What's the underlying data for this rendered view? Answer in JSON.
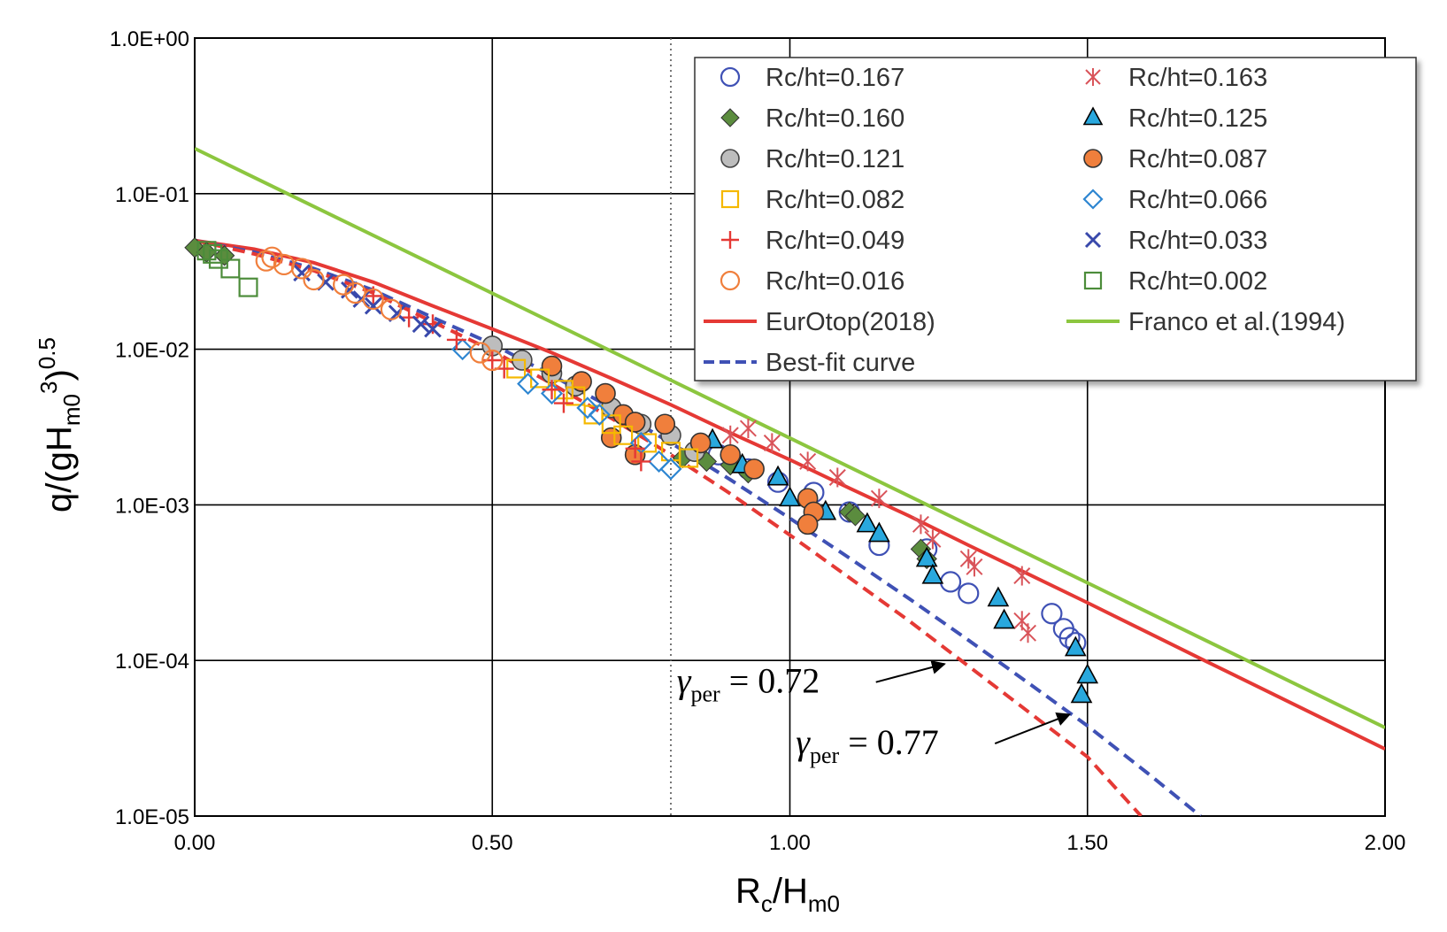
{
  "chart_data": {
    "type": "scatter",
    "title": "",
    "xlabel": "Rc/Hm0",
    "ylabel": "q/(gHm0^3)^0.5",
    "xlabel_parts": {
      "main": "R",
      "sub1": "c",
      "mid": "/H",
      "sub2": "m0"
    },
    "ylabel_parts": {
      "pre": "q/(gH",
      "sub": "m0",
      "sup1": "3",
      "post": ")",
      "sup2": "0.5"
    },
    "xlim": [
      0,
      2
    ],
    "ylim": [
      1e-05,
      1
    ],
    "yscale": "log",
    "grid": true,
    "x_ticks": [
      {
        "v": 0,
        "label": "0.00"
      },
      {
        "v": 0.5,
        "label": "0.50"
      },
      {
        "v": 1.0,
        "label": "1.00"
      },
      {
        "v": 1.5,
        "label": "1.50"
      },
      {
        "v": 2.0,
        "label": "2.00"
      }
    ],
    "y_ticks": [
      {
        "v": 1,
        "label": "1.0E+00"
      },
      {
        "v": 0.1,
        "label": "1.0E-01"
      },
      {
        "v": 0.01,
        "label": "1.0E-02"
      },
      {
        "v": 0.001,
        "label": "1.0E-03"
      },
      {
        "v": 0.0001,
        "label": "1.0E-04"
      },
      {
        "v": 1e-05,
        "label": "1.0E-05"
      }
    ],
    "vline_dotted": 0.8,
    "legend_position": "top-right",
    "series": [
      {
        "name": "Rc/ht=0.167",
        "marker": "circle-open",
        "color": "#3F51B5",
        "points": [
          [
            0.88,
            0.0021
          ],
          [
            0.93,
            0.0017
          ],
          [
            0.98,
            0.0014
          ],
          [
            1.04,
            0.0012
          ],
          [
            1.1,
            0.0009
          ],
          [
            1.15,
            0.00055
          ],
          [
            1.23,
            0.00052
          ],
          [
            1.27,
            0.00032
          ],
          [
            1.3,
            0.00027
          ],
          [
            1.44,
            0.0002
          ],
          [
            1.46,
            0.00016
          ],
          [
            1.47,
            0.00014
          ],
          [
            1.48,
            0.00013
          ]
        ]
      },
      {
        "name": "Rc/ht=0.163",
        "marker": "asterisk",
        "color": "#D9545A",
        "points": [
          [
            0.9,
            0.0028
          ],
          [
            0.93,
            0.0031
          ],
          [
            0.97,
            0.0025
          ],
          [
            1.03,
            0.0019
          ],
          [
            1.08,
            0.0015
          ],
          [
            1.15,
            0.0011
          ],
          [
            1.22,
            0.00075
          ],
          [
            1.24,
            0.0006
          ],
          [
            1.3,
            0.00045
          ],
          [
            1.31,
            0.0004
          ],
          [
            1.39,
            0.00035
          ],
          [
            1.39,
            0.00018
          ],
          [
            1.4,
            0.00015
          ]
        ]
      },
      {
        "name": "Rc/ht=0.160",
        "marker": "diamond",
        "color": "#5B8C3E",
        "points": [
          [
            0.0,
            0.045
          ],
          [
            0.02,
            0.042
          ],
          [
            0.05,
            0.04
          ],
          [
            0.82,
            0.002
          ],
          [
            0.86,
            0.0019
          ],
          [
            0.9,
            0.0018
          ],
          [
            0.93,
            0.0016
          ],
          [
            1.1,
            0.0009
          ],
          [
            1.11,
            0.00085
          ],
          [
            1.22,
            0.00052
          ],
          [
            1.23,
            0.00045
          ]
        ]
      },
      {
        "name": "Rc/ht=0.125",
        "marker": "triangle",
        "color": "#29A8DE",
        "points": [
          [
            0.87,
            0.0026
          ],
          [
            0.92,
            0.0018
          ],
          [
            0.98,
            0.0015
          ],
          [
            1.0,
            0.0011
          ],
          [
            1.06,
            0.0009
          ],
          [
            1.13,
            0.00075
          ],
          [
            1.15,
            0.00065
          ],
          [
            1.23,
            0.00045
          ],
          [
            1.24,
            0.00035
          ],
          [
            1.35,
            0.00025
          ],
          [
            1.36,
            0.00018
          ],
          [
            1.48,
            0.00012
          ],
          [
            1.5,
            8e-05
          ],
          [
            1.49,
            6e-05
          ]
        ]
      },
      {
        "name": "Rc/ht=0.121",
        "marker": "circle-gray",
        "color": "#BDBDBD",
        "points": [
          [
            0.5,
            0.0105
          ],
          [
            0.55,
            0.0085
          ],
          [
            0.6,
            0.007
          ],
          [
            0.64,
            0.0058
          ],
          [
            0.7,
            0.0042
          ],
          [
            0.75,
            0.0033
          ],
          [
            0.8,
            0.0028
          ],
          [
            0.84,
            0.0022
          ]
        ]
      },
      {
        "name": "Rc/ht=0.087",
        "marker": "circle-orange",
        "color": "#F07F3C",
        "points": [
          [
            0.6,
            0.0078
          ],
          [
            0.65,
            0.0062
          ],
          [
            0.69,
            0.0052
          ],
          [
            0.72,
            0.0038
          ],
          [
            0.74,
            0.0034
          ],
          [
            0.79,
            0.0033
          ],
          [
            0.85,
            0.0025
          ],
          [
            0.9,
            0.0021
          ],
          [
            0.94,
            0.0017
          ],
          [
            1.03,
            0.0011
          ],
          [
            1.04,
            0.0009
          ],
          [
            1.03,
            0.00075
          ],
          [
            0.7,
            0.0027
          ],
          [
            0.74,
            0.0021
          ]
        ]
      },
      {
        "name": "Rc/ht=0.082",
        "marker": "square-open",
        "color": "#F5B800",
        "points": [
          [
            0.54,
            0.0075
          ],
          [
            0.58,
            0.0065
          ],
          [
            0.62,
            0.0055
          ],
          [
            0.64,
            0.005
          ],
          [
            0.67,
            0.0038
          ],
          [
            0.7,
            0.0033
          ],
          [
            0.72,
            0.0028
          ],
          [
            0.76,
            0.0025
          ],
          [
            0.8,
            0.0022
          ],
          [
            0.83,
            0.002
          ]
        ]
      },
      {
        "name": "Rc/ht=0.066",
        "marker": "diamond-open",
        "color": "#2E86D1",
        "points": [
          [
            0.45,
            0.01
          ],
          [
            0.56,
            0.006
          ],
          [
            0.6,
            0.0052
          ],
          [
            0.66,
            0.0042
          ],
          [
            0.68,
            0.0038
          ],
          [
            0.75,
            0.0025
          ],
          [
            0.78,
            0.0019
          ],
          [
            0.8,
            0.0017
          ]
        ]
      },
      {
        "name": "Rc/ht=0.049",
        "marker": "plus",
        "color": "#E53935",
        "points": [
          [
            0.3,
            0.022
          ],
          [
            0.36,
            0.016
          ],
          [
            0.4,
            0.0145
          ],
          [
            0.44,
            0.0115
          ],
          [
            0.5,
            0.0085
          ],
          [
            0.52,
            0.0075
          ],
          [
            0.6,
            0.0055
          ],
          [
            0.62,
            0.0045
          ],
          [
            0.74,
            0.0023
          ],
          [
            0.75,
            0.0019
          ]
        ]
      },
      {
        "name": "Rc/ht=0.033",
        "marker": "x",
        "color": "#3949AB",
        "points": [
          [
            0.18,
            0.031
          ],
          [
            0.22,
            0.027
          ],
          [
            0.26,
            0.024
          ],
          [
            0.28,
            0.021
          ],
          [
            0.3,
            0.019
          ],
          [
            0.34,
            0.017
          ],
          [
            0.38,
            0.0145
          ],
          [
            0.4,
            0.0135
          ]
        ]
      },
      {
        "name": "Rc/ht=0.016",
        "marker": "circle-open",
        "color": "#F07F3C",
        "points": [
          [
            0.12,
            0.037
          ],
          [
            0.13,
            0.039
          ],
          [
            0.15,
            0.035
          ],
          [
            0.18,
            0.033
          ],
          [
            0.2,
            0.028
          ],
          [
            0.25,
            0.026
          ],
          [
            0.27,
            0.023
          ],
          [
            0.3,
            0.021
          ],
          [
            0.33,
            0.018
          ],
          [
            0.48,
            0.0095
          ],
          [
            0.5,
            0.0085
          ]
        ]
      },
      {
        "name": "Rc/ht=0.002",
        "marker": "square-open",
        "color": "#4C8C3A",
        "points": [
          [
            0.02,
            0.043
          ],
          [
            0.03,
            0.041
          ],
          [
            0.04,
            0.038
          ],
          [
            0.06,
            0.033
          ],
          [
            0.09,
            0.025
          ]
        ]
      }
    ],
    "lines": [
      {
        "name": "EurOtop(2018)",
        "color": "#E53935",
        "style": "solid",
        "points": [
          [
            0,
            0.05
          ],
          [
            0.1,
            0.044
          ],
          [
            0.2,
            0.036
          ],
          [
            0.3,
            0.027
          ],
          [
            0.4,
            0.019
          ],
          [
            0.5,
            0.0135
          ],
          [
            0.6,
            0.0095
          ],
          [
            0.7,
            0.0065
          ],
          [
            0.8,
            0.0044
          ],
          [
            0.9,
            0.0029
          ],
          [
            1.0,
            0.00195
          ],
          [
            1.1,
            0.00128
          ],
          [
            1.2,
            0.00085
          ],
          [
            1.3,
            0.00055
          ],
          [
            1.4,
            0.00036
          ],
          [
            1.5,
            0.000235
          ],
          [
            1.6,
            0.000152
          ],
          [
            1.7,
            9.85e-05
          ],
          [
            1.8,
            6.4e-05
          ],
          [
            1.9,
            4.15e-05
          ],
          [
            2.0,
            2.7e-05
          ]
        ]
      },
      {
        "name": "Franco et al.(1994)",
        "color": "#8CC63F",
        "style": "solid",
        "points": [
          [
            0,
            0.195
          ],
          [
            2.0,
            3.7e-05
          ]
        ]
      },
      {
        "name": "Best-fit curve",
        "color": "#3F51B5",
        "style": "dashed",
        "points": [
          [
            0,
            0.05
          ],
          [
            0.1,
            0.042
          ],
          [
            0.2,
            0.033
          ],
          [
            0.3,
            0.024
          ],
          [
            0.4,
            0.016
          ],
          [
            0.5,
            0.0108
          ],
          [
            0.6,
            0.0068
          ],
          [
            0.7,
            0.0042
          ],
          [
            0.8,
            0.0025
          ],
          [
            0.9,
            0.00145
          ],
          [
            1.0,
            0.00082
          ],
          [
            1.1,
            0.000455
          ],
          [
            1.2,
            0.00025
          ],
          [
            1.3,
            0.000135
          ],
          [
            1.4,
            7.2e-05
          ],
          [
            1.5,
            3.8e-05
          ],
          [
            1.6,
            1.9e-05
          ],
          [
            1.69,
            1e-05
          ]
        ]
      },
      {
        "name": "",
        "color": "#E53935",
        "style": "dashed",
        "legend": false,
        "points": [
          [
            0,
            0.05
          ],
          [
            0.1,
            0.041
          ],
          [
            0.2,
            0.032
          ],
          [
            0.3,
            0.023
          ],
          [
            0.4,
            0.015
          ],
          [
            0.5,
            0.0098
          ],
          [
            0.6,
            0.006
          ],
          [
            0.7,
            0.0036
          ],
          [
            0.8,
            0.0021
          ],
          [
            0.9,
            0.00118
          ],
          [
            1.0,
            0.00064
          ],
          [
            1.1,
            0.00034
          ],
          [
            1.2,
            0.00018
          ],
          [
            1.3,
            9.2e-05
          ],
          [
            1.4,
            4.7e-05
          ],
          [
            1.5,
            2.4e-05
          ],
          [
            1.59,
            1e-05
          ]
        ]
      }
    ],
    "annotations": [
      {
        "text": "γ_per = 0.72",
        "symbol": "γ",
        "sub": "per",
        "rest": "= 0.72",
        "x": 0.81,
        "y": 6.2e-05,
        "arrow_to": [
          1.26,
          9.5e-05
        ]
      },
      {
        "text": "γ_per = 0.77",
        "symbol": "γ",
        "sub": "per",
        "rest": "= 0.77",
        "x": 1.01,
        "y": 2.5e-05,
        "arrow_to": [
          1.47,
          4.5e-05
        ]
      }
    ]
  }
}
